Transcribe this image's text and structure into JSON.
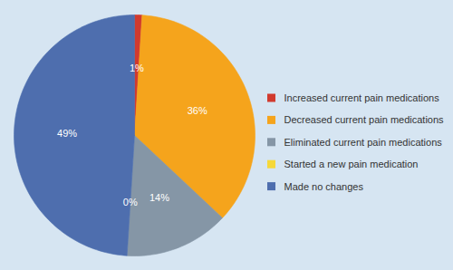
{
  "chart_data": {
    "type": "pie",
    "categories": [
      "Increased current pain medications",
      "Decreased current pain medications",
      "Eliminated current pain medications",
      "Started a new pain medication",
      "Made no changes"
    ],
    "values": [
      1,
      36,
      14,
      0,
      49
    ],
    "value_labels": [
      "1%",
      "36%",
      "14%",
      "0%",
      "49%"
    ],
    "colors": [
      "#d13a2e",
      "#f5a41c",
      "#8596a6",
      "#f6d83a",
      "#4e6eae"
    ],
    "data_labels": true,
    "legend": "right"
  }
}
